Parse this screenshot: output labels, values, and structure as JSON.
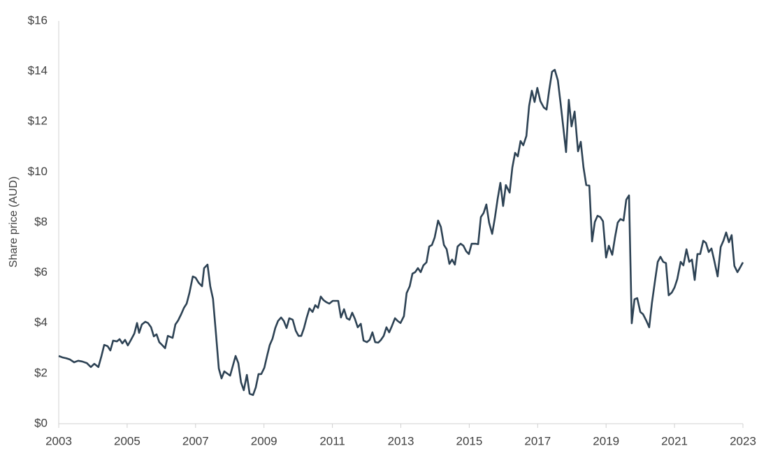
{
  "chart_data": {
    "type": "line",
    "y_label": "Share price (AUD)",
    "color": "#2d4254",
    "xlim": [
      2003,
      2023
    ],
    "xticks": [
      2003,
      2005,
      2007,
      2009,
      2011,
      2013,
      2015,
      2017,
      2019,
      2021,
      2023
    ],
    "ylim": [
      0,
      16
    ],
    "yticks": [
      {
        "value": 0,
        "label": "$0"
      },
      {
        "value": 2,
        "label": "$2"
      },
      {
        "value": 4,
        "label": "$4"
      },
      {
        "value": 6,
        "label": "$6"
      },
      {
        "value": 8,
        "label": "$8"
      },
      {
        "value": 10,
        "label": "$10"
      },
      {
        "value": 12,
        "label": "$12"
      },
      {
        "value": 14,
        "label": "$14"
      },
      {
        "value": 16,
        "label": "$16"
      }
    ],
    "grid": false,
    "x": [
      2003.0,
      2003.12,
      2003.22,
      2003.33,
      2003.45,
      2003.57,
      2003.69,
      2003.82,
      2003.94,
      2004.04,
      2004.16,
      2004.25,
      2004.33,
      2004.43,
      2004.51,
      2004.59,
      2004.7,
      2004.78,
      2004.86,
      2004.94,
      2005.02,
      2005.1,
      2005.21,
      2005.29,
      2005.35,
      2005.43,
      2005.53,
      2005.61,
      2005.7,
      2005.78,
      2005.86,
      2005.94,
      2006.02,
      2006.11,
      2006.19,
      2006.33,
      2006.41,
      2006.49,
      2006.58,
      2006.66,
      2006.74,
      2006.82,
      2006.92,
      2007.0,
      2007.09,
      2007.19,
      2007.25,
      2007.35,
      2007.43,
      2007.51,
      2007.6,
      2007.68,
      2007.76,
      2007.84,
      2007.92,
      2008.01,
      2008.09,
      2008.17,
      2008.25,
      2008.33,
      2008.41,
      2008.5,
      2008.58,
      2008.68,
      2008.76,
      2008.84,
      2008.92,
      2009.01,
      2009.09,
      2009.17,
      2009.25,
      2009.33,
      2009.41,
      2009.5,
      2009.58,
      2009.66,
      2009.74,
      2009.84,
      2009.93,
      2010.01,
      2010.09,
      2010.17,
      2010.25,
      2010.33,
      2010.42,
      2010.5,
      2010.58,
      2010.66,
      2010.74,
      2010.82,
      2010.91,
      2011.01,
      2011.09,
      2011.17,
      2011.25,
      2011.34,
      2011.42,
      2011.5,
      2011.58,
      2011.66,
      2011.74,
      2011.83,
      2011.91,
      2012.01,
      2012.09,
      2012.17,
      2012.25,
      2012.34,
      2012.42,
      2012.5,
      2012.58,
      2012.66,
      2012.74,
      2012.83,
      2012.91,
      2012.99,
      2013.09,
      2013.17,
      2013.26,
      2013.34,
      2013.42,
      2013.5,
      2013.58,
      2013.66,
      2013.75,
      2013.83,
      2013.91,
      2013.99,
      2014.09,
      2014.17,
      2014.26,
      2014.34,
      2014.42,
      2014.5,
      2014.58,
      2014.66,
      2014.75,
      2014.83,
      2014.91,
      2014.99,
      2015.07,
      2015.18,
      2015.26,
      2015.34,
      2015.42,
      2015.5,
      2015.58,
      2015.67,
      2015.75,
      2015.83,
      2015.91,
      2015.99,
      2016.07,
      2016.18,
      2016.26,
      2016.34,
      2016.42,
      2016.5,
      2016.58,
      2016.67,
      2016.75,
      2016.83,
      2016.91,
      2016.99,
      2017.08,
      2017.18,
      2017.26,
      2017.34,
      2017.42,
      2017.5,
      2017.59,
      2017.67,
      2017.75,
      2017.83,
      2017.91,
      2017.99,
      2018.08,
      2018.18,
      2018.26,
      2018.34,
      2018.42,
      2018.51,
      2018.59,
      2018.67,
      2018.75,
      2018.83,
      2018.91,
      2019.0,
      2019.08,
      2019.18,
      2019.26,
      2019.34,
      2019.42,
      2019.51,
      2019.59,
      2019.67,
      2019.75,
      2019.83,
      2019.91,
      2020.0,
      2020.08,
      2020.18,
      2020.26,
      2020.34,
      2020.43,
      2020.51,
      2020.59,
      2020.67,
      2020.75,
      2020.83,
      2020.92,
      2021.0,
      2021.08,
      2021.18,
      2021.26,
      2021.35,
      2021.43,
      2021.51,
      2021.59,
      2021.67,
      2021.75,
      2021.84,
      2021.92,
      2022.0,
      2022.08,
      2022.16,
      2022.26,
      2022.35,
      2022.43,
      2022.51,
      2022.59,
      2022.67,
      2022.75,
      2022.84,
      2022.92,
      2023.0
    ],
    "values": [
      2.69,
      2.63,
      2.6,
      2.55,
      2.44,
      2.5,
      2.47,
      2.41,
      2.25,
      2.38,
      2.25,
      2.69,
      3.13,
      3.08,
      2.91,
      3.3,
      3.27,
      3.36,
      3.19,
      3.33,
      3.11,
      3.3,
      3.58,
      4.0,
      3.61,
      3.94,
      4.05,
      4.0,
      3.83,
      3.47,
      3.55,
      3.24,
      3.13,
      3.0,
      3.49,
      3.41,
      3.94,
      4.1,
      4.35,
      4.6,
      4.77,
      5.19,
      5.85,
      5.8,
      5.6,
      5.46,
      6.18,
      6.32,
      5.46,
      4.96,
      3.52,
      2.19,
      1.8,
      2.08,
      2.0,
      1.91,
      2.3,
      2.69,
      2.41,
      1.64,
      1.33,
      1.94,
      1.19,
      1.14,
      1.44,
      1.97,
      1.97,
      2.22,
      2.69,
      3.13,
      3.38,
      3.8,
      4.08,
      4.22,
      4.08,
      3.8,
      4.19,
      4.13,
      3.69,
      3.49,
      3.49,
      3.8,
      4.22,
      4.58,
      4.44,
      4.71,
      4.6,
      5.05,
      4.91,
      4.83,
      4.77,
      4.88,
      4.88,
      4.88,
      4.22,
      4.55,
      4.19,
      4.13,
      4.41,
      4.16,
      3.83,
      3.97,
      3.3,
      3.24,
      3.33,
      3.63,
      3.24,
      3.22,
      3.33,
      3.49,
      3.83,
      3.63,
      3.88,
      4.19,
      4.08,
      4.0,
      4.27,
      5.19,
      5.46,
      5.96,
      6.02,
      6.18,
      6.02,
      6.29,
      6.41,
      7.04,
      7.1,
      7.4,
      8.07,
      7.82,
      7.1,
      6.93,
      6.35,
      6.52,
      6.32,
      7.04,
      7.15,
      7.07,
      6.85,
      6.74,
      7.15,
      7.15,
      7.13,
      8.21,
      8.37,
      8.71,
      7.99,
      7.54,
      8.18,
      8.93,
      9.57,
      8.65,
      9.48,
      9.18,
      10.18,
      10.76,
      10.62,
      11.23,
      11.06,
      11.43,
      12.62,
      13.23,
      12.78,
      13.34,
      12.81,
      12.56,
      12.48,
      13.28,
      13.98,
      14.06,
      13.64,
      12.73,
      11.76,
      10.79,
      12.87,
      11.81,
      12.4,
      10.82,
      11.2,
      10.18,
      9.48,
      9.46,
      7.24,
      8.01,
      8.26,
      8.21,
      8.04,
      6.6,
      7.07,
      6.71,
      7.4,
      7.99,
      8.13,
      8.07,
      8.9,
      9.07,
      3.99,
      4.94,
      4.99,
      4.44,
      4.35,
      4.08,
      3.83,
      4.8,
      5.68,
      6.43,
      6.63,
      6.43,
      6.38,
      5.1,
      5.21,
      5.41,
      5.74,
      6.43,
      6.29,
      6.93,
      6.43,
      6.52,
      5.71,
      6.74,
      6.74,
      7.27,
      7.18,
      6.82,
      6.96,
      6.49,
      5.85,
      7.02,
      7.27,
      7.6,
      7.21,
      7.49,
      6.27,
      6.02,
      6.21,
      6.41
    ]
  }
}
